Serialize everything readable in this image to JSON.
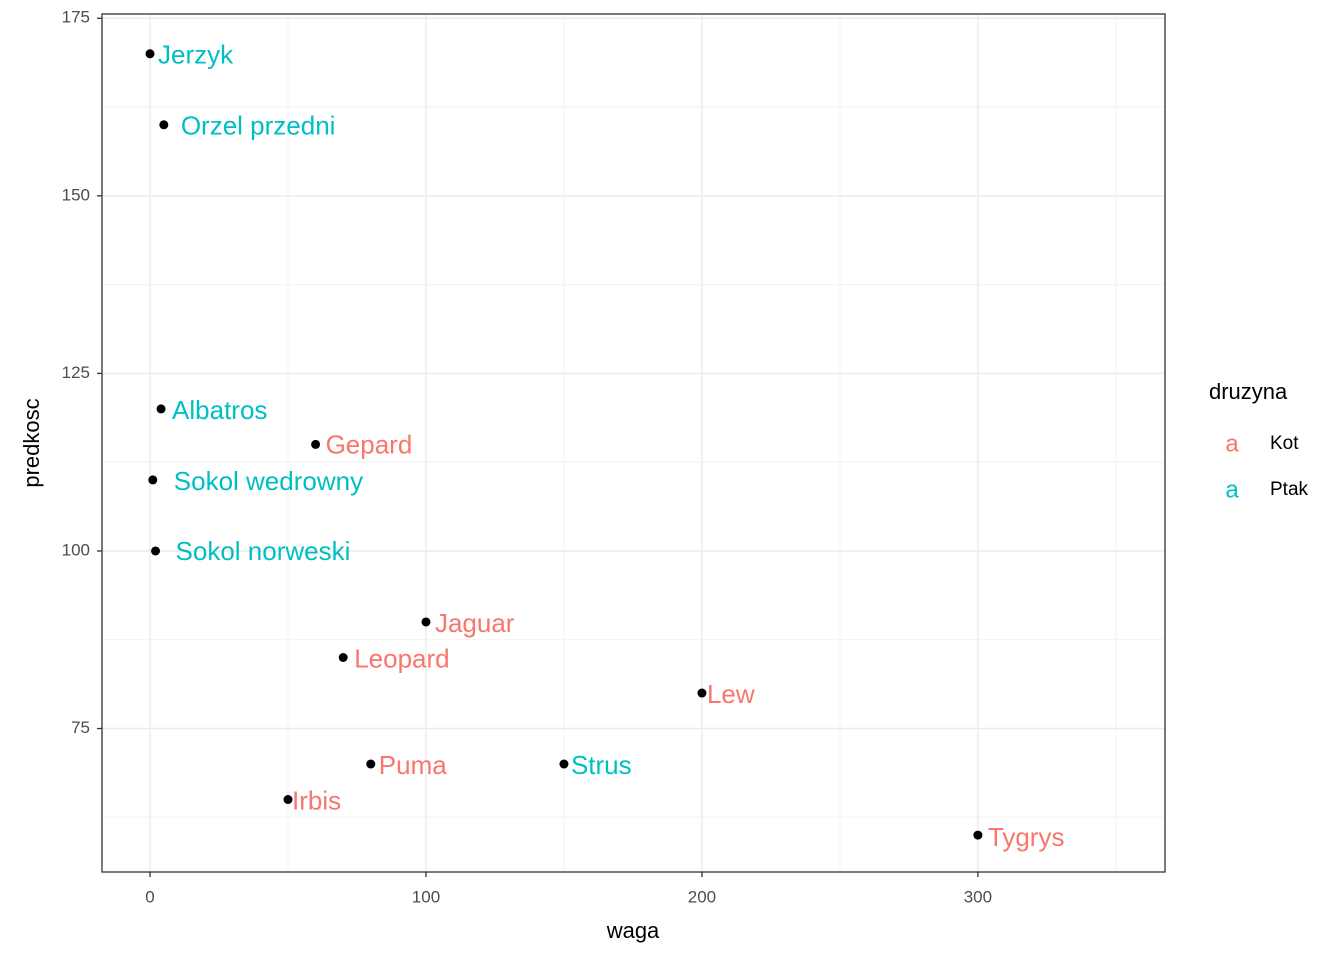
{
  "chart_data": {
    "type": "scatter",
    "x_label": "waga",
    "y_label": "predkosc",
    "legend_title": "druzyna",
    "legend_key_glyph": "a",
    "legend_position": "right",
    "xlim": [
      -17.4,
      367.8
    ],
    "ylim": [
      54.8,
      175.6
    ],
    "xticks": [
      0,
      100,
      200,
      300
    ],
    "yticks": [
      75,
      100,
      125,
      150,
      175
    ],
    "grid": true,
    "point_color": "#000000",
    "series": [
      {
        "name": "Kot",
        "color": "#F8766D",
        "labels": [
          "Gepard",
          "Jaguar",
          "Leopard",
          "Lew",
          "Puma",
          "Irbis",
          "Tygrys"
        ],
        "x": [
          60,
          100,
          70,
          200,
          80,
          50,
          300
        ],
        "values": [
          115,
          90,
          85,
          80,
          70,
          65,
          60
        ]
      },
      {
        "name": "Ptak",
        "color": "#00BFC4",
        "labels": [
          "Jerzyk",
          "Orzel przedni",
          "Albatros",
          "Sokol wedrowny",
          "Sokol norweski",
          "Strus"
        ],
        "x": [
          0,
          5,
          4,
          1,
          2,
          150
        ],
        "values": [
          170,
          160,
          120,
          110,
          100,
          70
        ]
      }
    ]
  }
}
